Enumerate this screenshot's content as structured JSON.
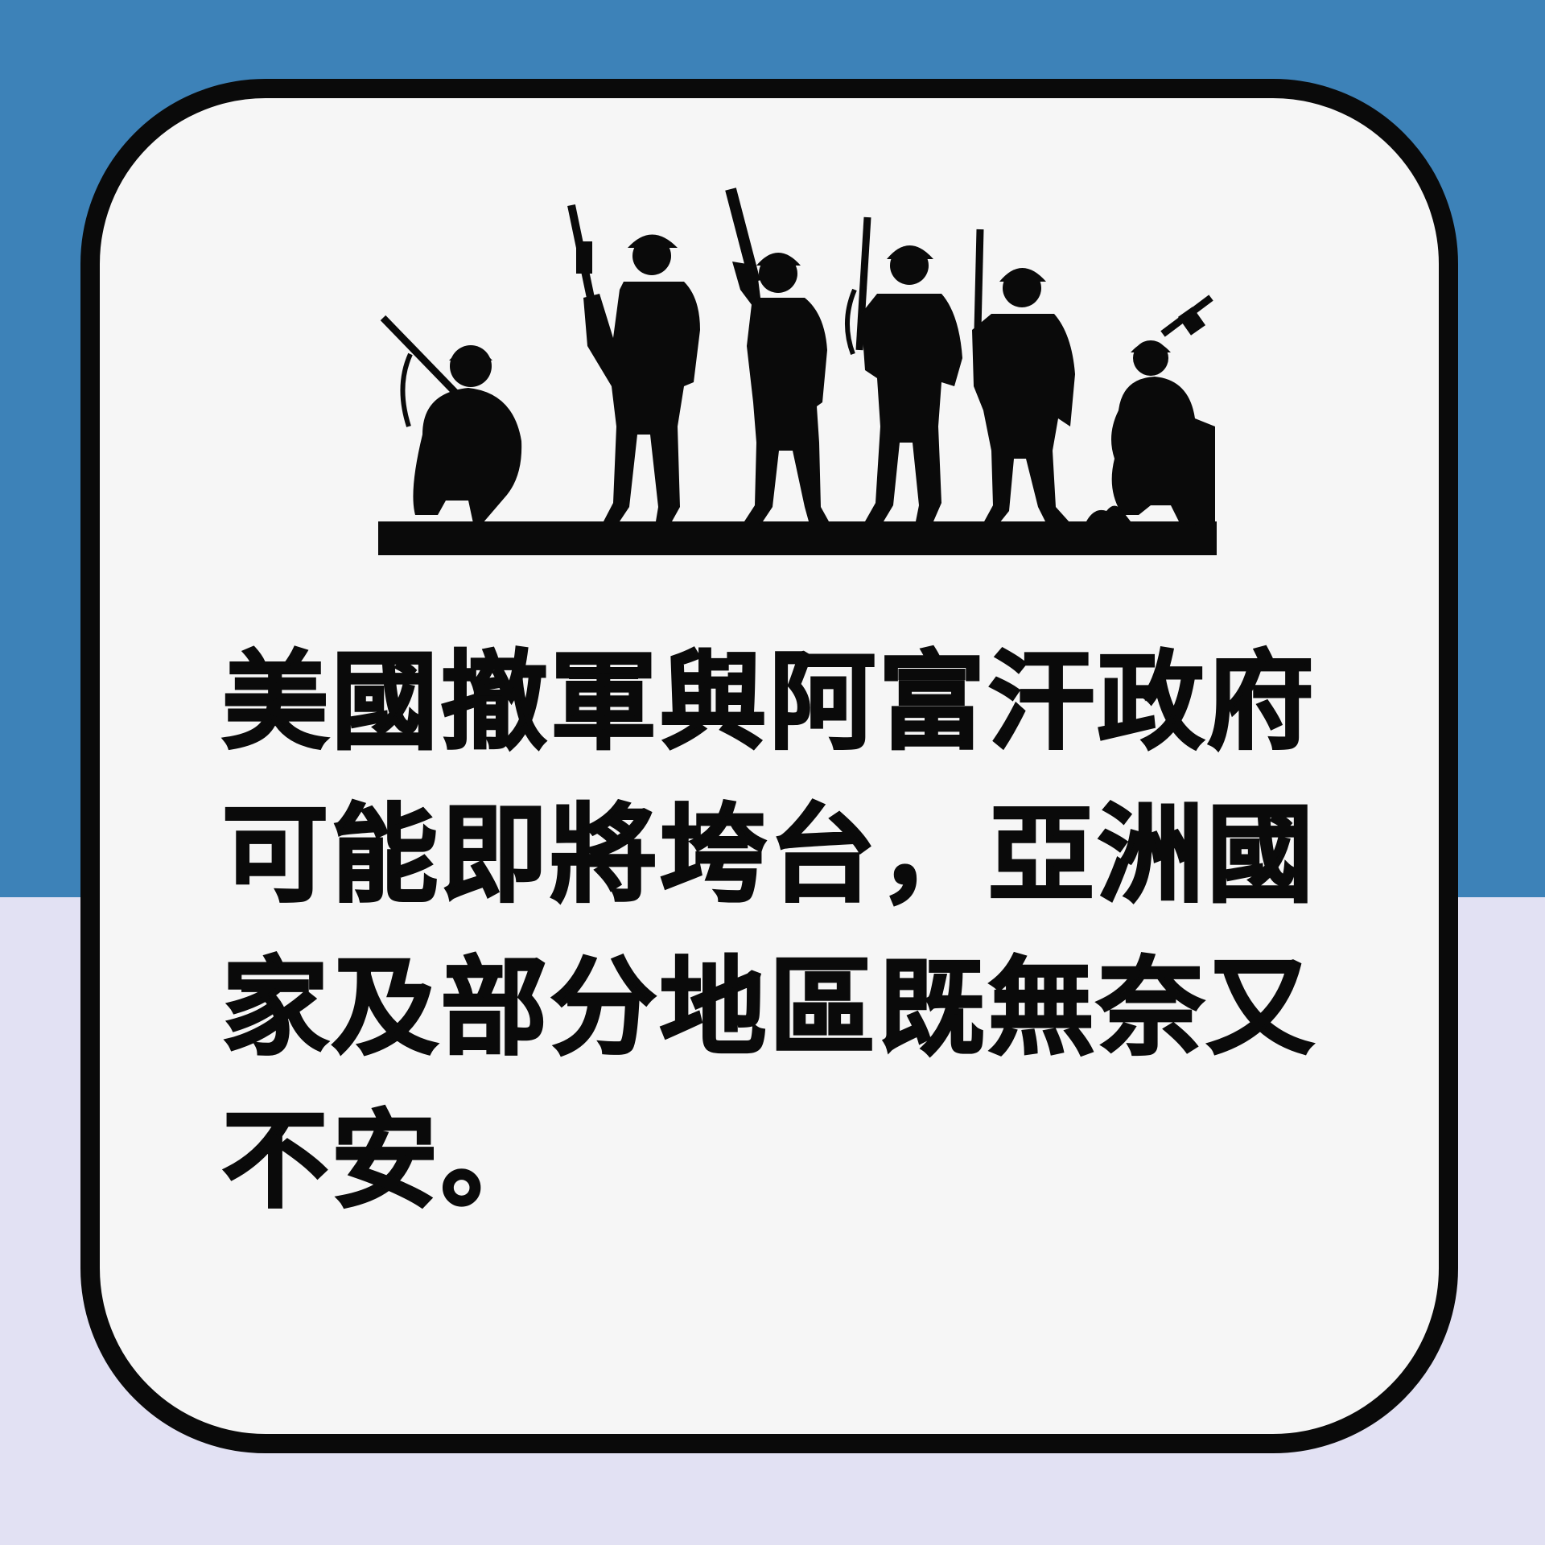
{
  "colors": {
    "top_background": "#3d82b8",
    "bottom_background": "#e2e1f3",
    "card_background": "#f6f6f6",
    "ink": "#0a0a0a"
  },
  "illustration": {
    "subject": "soldiers-silhouette",
    "figures": [
      "kneeling-soldier",
      "soldier-rifle-raised",
      "soldier-rifle-aimed-up",
      "soldier-rifle-shoulder",
      "soldier-rifle-raised",
      "kneeling-soldier"
    ]
  },
  "headline": {
    "lines": [
      "美國撤軍與阿富汗政府",
      "可能即將垮台，亞洲國",
      "家及部分地區既無奈又",
      "不安。"
    ]
  }
}
